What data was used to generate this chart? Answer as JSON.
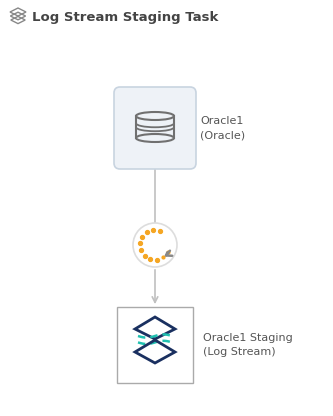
{
  "bg_color": "#ffffff",
  "title": "Log Stream Staging Task",
  "title_fontsize": 9.5,
  "title_color": "#444444",
  "title_icon_color": "#888888",
  "label_color": "#555555",
  "label_fontsize": 8.0,
  "oracle_label": "Oracle1\n(Oracle)",
  "logstream_label": "Oracle1 Staging\n(Log Stream)",
  "connector_color": "#c0c0c0",
  "box_bg_color": "#eef2f7",
  "box_border_color": "#c8d4e0",
  "oracle_icon_color": "#707070",
  "spinner_dot_color": "#f5a623",
  "spinner_arrow_color": "#888888",
  "logstream_box_bg": "#ffffff",
  "logstream_box_border": "#aaaaaa",
  "logstream_diamond_color": "#1a3060",
  "logstream_wave_color": "#20c0b0"
}
